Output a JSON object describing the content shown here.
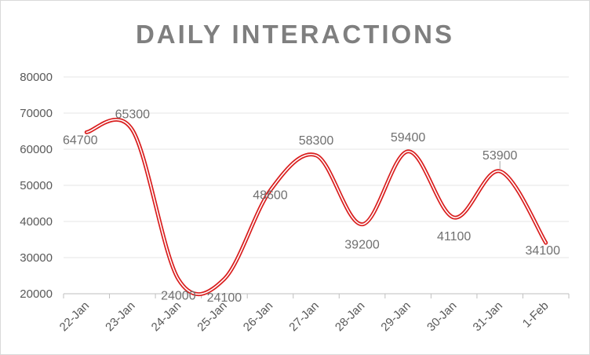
{
  "chart_data": {
    "type": "line",
    "title": "DAILY INTERACTIONS",
    "categories": [
      "22-Jan",
      "23-Jan",
      "24-Jan",
      "25-Jan",
      "26-Jan",
      "27-Jan",
      "28-Jan",
      "29-Jan",
      "30-Jan",
      "31-Jan",
      "1-Feb"
    ],
    "series": [
      {
        "name": "Interactions",
        "values": [
          64700,
          65300,
          24000,
          24100,
          48600,
          58300,
          39200,
          59400,
          41100,
          53900,
          34100
        ]
      }
    ],
    "data_labels": [
      "64700",
      "65300",
      "24000",
      "24100",
      "48600",
      "58300",
      "39200",
      "59400",
      "41100",
      "53900",
      "34100"
    ],
    "yticks": [
      20000,
      30000,
      40000,
      50000,
      60000,
      70000,
      80000
    ],
    "ytick_labels": [
      "20000",
      "30000",
      "40000",
      "50000",
      "60000",
      "70000",
      "80000"
    ],
    "ylim": [
      20000,
      80000
    ],
    "xlabel": "",
    "ylabel": "",
    "grid": true,
    "legend": "none",
    "line_color": "#d91e1e",
    "grid_color": "#e6e6e6",
    "axis_color": "#bfbfbf"
  }
}
